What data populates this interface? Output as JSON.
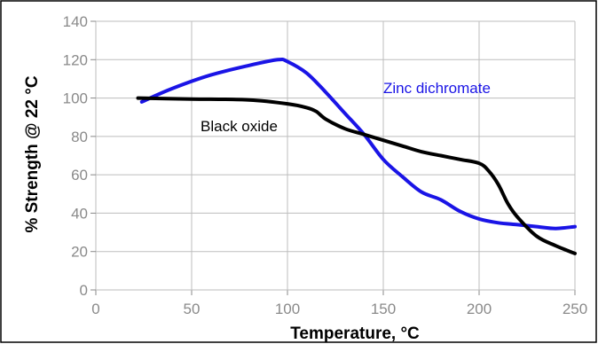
{
  "chart_data": {
    "type": "line",
    "title": "",
    "xlabel": "Temperature, °C",
    "ylabel": "% Strength @ 22 °C",
    "xlim": [
      0,
      250
    ],
    "ylim": [
      0,
      140
    ],
    "xticks": [
      0,
      50,
      100,
      150,
      200,
      250
    ],
    "yticks": [
      0,
      20,
      40,
      60,
      80,
      100,
      120,
      140
    ],
    "grid": true,
    "legend": "none (series labeled directly on plot)",
    "series": [
      {
        "name": "Zinc dichromate",
        "color": "#1a14e6",
        "x": [
          24,
          40,
          60,
          80,
          95,
          100,
          110,
          120,
          130,
          140,
          150,
          160,
          170,
          180,
          190,
          200,
          210,
          220,
          230,
          240,
          250
        ],
        "y": [
          98,
          105,
          112,
          117,
          120,
          119,
          113,
          103,
          92,
          81,
          68,
          59,
          51,
          47,
          41,
          37,
          35,
          34,
          33,
          32,
          33
        ]
      },
      {
        "name": "Black oxide",
        "color": "#000000",
        "x": [
          22,
          50,
          80,
          100,
          110,
          115,
          120,
          130,
          140,
          150,
          160,
          170,
          180,
          190,
          200,
          205,
          210,
          215,
          220,
          230,
          240,
          250
        ],
        "y": [
          100,
          99.5,
          99,
          97,
          95,
          93,
          89,
          84,
          81,
          78,
          75,
          72,
          70,
          68,
          66,
          62,
          55,
          45,
          38,
          28,
          23,
          19
        ]
      }
    ]
  }
}
